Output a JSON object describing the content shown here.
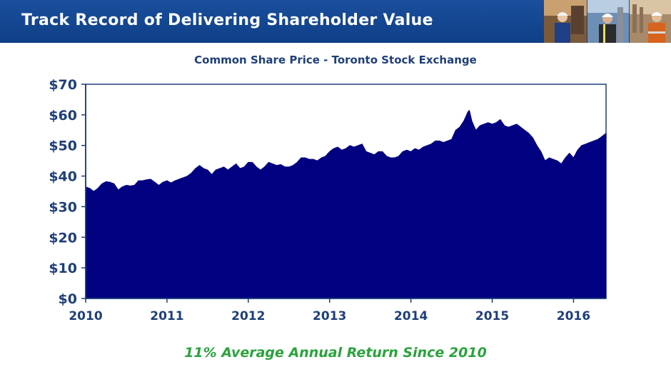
{
  "header": {
    "title": "Track Record of Delivering Shareholder Value"
  },
  "footnote": "11% Average Annual Return Since 2010",
  "colors": {
    "header_bg": "#0f3f87",
    "area_fill": "#000080",
    "footnote": "#2aa33c",
    "title": "#1f3f7a"
  },
  "chart_data": {
    "type": "area",
    "title": "Common Share Price - Toronto Stock Exchange",
    "xlabel": "",
    "ylabel": "",
    "xlim": [
      2010,
      2016.4
    ],
    "ylim": [
      0,
      70
    ],
    "x_ticks": [
      "2010",
      "2011",
      "2012",
      "2013",
      "2014",
      "2015",
      "2016"
    ],
    "y_ticks": [
      "$0",
      "$10",
      "$20",
      "$30",
      "$40",
      "$50",
      "$60",
      "$70"
    ],
    "grid": false,
    "legend": "none",
    "series": [
      {
        "values": [
          [
            2010.0,
            36.5
          ],
          [
            2010.05,
            36.0
          ],
          [
            2010.1,
            35.0
          ],
          [
            2010.15,
            36.0
          ],
          [
            2010.2,
            37.5
          ],
          [
            2010.25,
            38.2
          ],
          [
            2010.3,
            38.0
          ],
          [
            2010.35,
            37.5
          ],
          [
            2010.4,
            35.5
          ],
          [
            2010.45,
            36.5
          ],
          [
            2010.5,
            37.0
          ],
          [
            2010.55,
            36.8
          ],
          [
            2010.6,
            37.0
          ],
          [
            2010.65,
            38.5
          ],
          [
            2010.7,
            38.5
          ],
          [
            2010.75,
            38.8
          ],
          [
            2010.8,
            39.0
          ],
          [
            2010.85,
            38.0
          ],
          [
            2010.9,
            37.0
          ],
          [
            2010.95,
            38.0
          ],
          [
            2011.0,
            38.5
          ],
          [
            2011.05,
            37.8
          ],
          [
            2011.1,
            38.5
          ],
          [
            2011.15,
            39.0
          ],
          [
            2011.2,
            39.5
          ],
          [
            2011.25,
            40.0
          ],
          [
            2011.3,
            41.0
          ],
          [
            2011.35,
            42.5
          ],
          [
            2011.4,
            43.5
          ],
          [
            2011.45,
            42.5
          ],
          [
            2011.5,
            42.0
          ],
          [
            2011.55,
            40.5
          ],
          [
            2011.6,
            42.0
          ],
          [
            2011.65,
            42.5
          ],
          [
            2011.7,
            43.0
          ],
          [
            2011.75,
            42.0
          ],
          [
            2011.8,
            43.0
          ],
          [
            2011.85,
            44.0
          ],
          [
            2011.9,
            42.5
          ],
          [
            2011.95,
            43.0
          ],
          [
            2012.0,
            44.5
          ],
          [
            2012.05,
            44.5
          ],
          [
            2012.1,
            43.0
          ],
          [
            2012.15,
            42.0
          ],
          [
            2012.2,
            43.0
          ],
          [
            2012.25,
            44.5
          ],
          [
            2012.3,
            44.0
          ],
          [
            2012.35,
            43.5
          ],
          [
            2012.4,
            43.8
          ],
          [
            2012.45,
            43.0
          ],
          [
            2012.5,
            43.0
          ],
          [
            2012.55,
            43.5
          ],
          [
            2012.6,
            44.5
          ],
          [
            2012.65,
            46.0
          ],
          [
            2012.7,
            46.0
          ],
          [
            2012.75,
            45.5
          ],
          [
            2012.8,
            45.5
          ],
          [
            2012.85,
            45.0
          ],
          [
            2012.9,
            46.0
          ],
          [
            2012.95,
            46.5
          ],
          [
            2013.0,
            48.0
          ],
          [
            2013.05,
            49.0
          ],
          [
            2013.1,
            49.5
          ],
          [
            2013.15,
            48.5
          ],
          [
            2013.2,
            49.0
          ],
          [
            2013.25,
            50.0
          ],
          [
            2013.3,
            49.5
          ],
          [
            2013.35,
            50.0
          ],
          [
            2013.4,
            50.5
          ],
          [
            2013.45,
            48.0
          ],
          [
            2013.5,
            47.5
          ],
          [
            2013.55,
            47.0
          ],
          [
            2013.6,
            48.0
          ],
          [
            2013.65,
            48.0
          ],
          [
            2013.7,
            46.5
          ],
          [
            2013.75,
            46.0
          ],
          [
            2013.8,
            46.0
          ],
          [
            2013.85,
            46.5
          ],
          [
            2013.9,
            48.0
          ],
          [
            2013.95,
            48.5
          ],
          [
            2014.0,
            48.0
          ],
          [
            2014.05,
            49.0
          ],
          [
            2014.1,
            48.5
          ],
          [
            2014.15,
            49.5
          ],
          [
            2014.2,
            50.0
          ],
          [
            2014.25,
            50.5
          ],
          [
            2014.3,
            51.5
          ],
          [
            2014.35,
            51.5
          ],
          [
            2014.4,
            51.0
          ],
          [
            2014.45,
            51.5
          ],
          [
            2014.5,
            52.0
          ],
          [
            2014.55,
            55.0
          ],
          [
            2014.6,
            56.0
          ],
          [
            2014.65,
            58.0
          ],
          [
            2014.7,
            61.0
          ],
          [
            2014.72,
            61.5
          ],
          [
            2014.75,
            58.0
          ],
          [
            2014.8,
            55.0
          ],
          [
            2014.85,
            56.5
          ],
          [
            2014.9,
            57.0
          ],
          [
            2014.95,
            57.5
          ],
          [
            2015.0,
            57.0
          ],
          [
            2015.05,
            57.5
          ],
          [
            2015.1,
            58.5
          ],
          [
            2015.15,
            56.5
          ],
          [
            2015.2,
            56.0
          ],
          [
            2015.25,
            56.5
          ],
          [
            2015.3,
            57.0
          ],
          [
            2015.35,
            56.0
          ],
          [
            2015.4,
            55.0
          ],
          [
            2015.45,
            54.0
          ],
          [
            2015.5,
            52.5
          ],
          [
            2015.55,
            50.0
          ],
          [
            2015.6,
            48.0
          ],
          [
            2015.65,
            45.0
          ],
          [
            2015.7,
            46.0
          ],
          [
            2015.75,
            45.5
          ],
          [
            2015.8,
            45.0
          ],
          [
            2015.85,
            44.0
          ],
          [
            2015.9,
            46.0
          ],
          [
            2015.95,
            47.5
          ],
          [
            2016.0,
            46.0
          ],
          [
            2016.05,
            48.5
          ],
          [
            2016.1,
            50.0
          ],
          [
            2016.15,
            50.5
          ],
          [
            2016.2,
            51.0
          ],
          [
            2016.25,
            51.5
          ],
          [
            2016.3,
            52.0
          ],
          [
            2016.35,
            53.0
          ],
          [
            2016.4,
            54.0
          ]
        ]
      }
    ]
  }
}
